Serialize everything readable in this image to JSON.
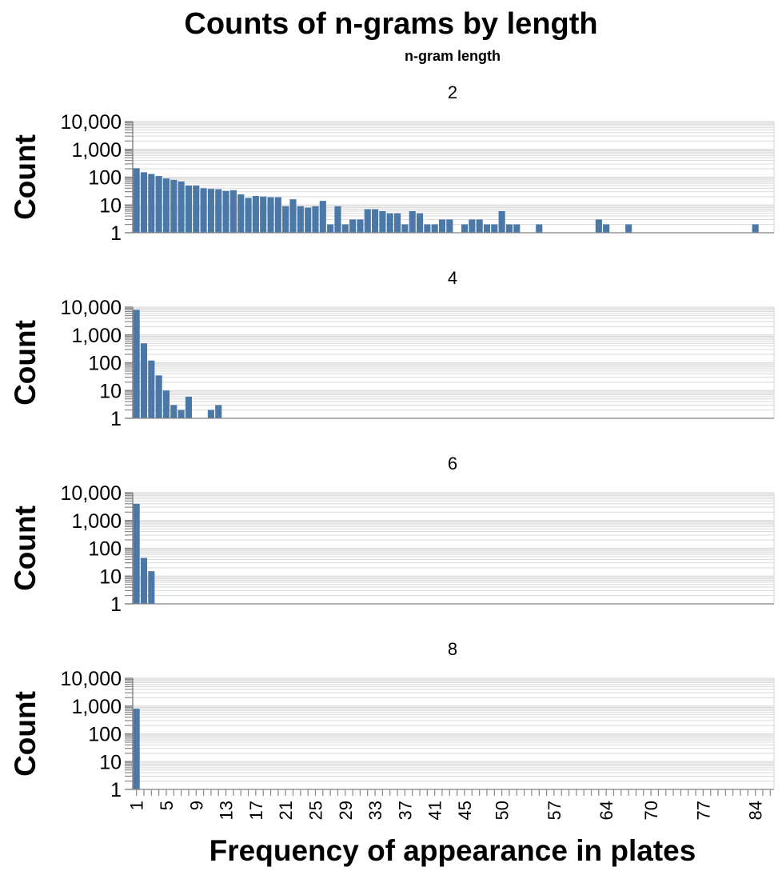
{
  "chart_data": {
    "type": "bar",
    "title": "Counts of n-grams by length",
    "facet_header": "n-gram length",
    "xlabel": "Frequency of appearance in plates",
    "ylabel": "Count",
    "y_scale": "log",
    "y_ticks": [
      "1",
      "10",
      "100",
      "1,000",
      "10,000"
    ],
    "x_tick_labels": [
      "1",
      "5",
      "9",
      "13",
      "17",
      "21",
      "25",
      "29",
      "33",
      "37",
      "41",
      "45",
      "50",
      "57",
      "64",
      "70",
      "77",
      "84"
    ],
    "grid": true,
    "colors": {
      "bar": "#4c78a8",
      "grid": "#dddddd",
      "tick": "#888888"
    },
    "facets": [
      {
        "name": "2",
        "points": [
          [
            1,
            210
          ],
          [
            2,
            150
          ],
          [
            3,
            130
          ],
          [
            4,
            110
          ],
          [
            5,
            90
          ],
          [
            6,
            80
          ],
          [
            7,
            70
          ],
          [
            8,
            50
          ],
          [
            9,
            50
          ],
          [
            10,
            40
          ],
          [
            11,
            38
          ],
          [
            12,
            37
          ],
          [
            13,
            32
          ],
          [
            14,
            34
          ],
          [
            15,
            24
          ],
          [
            16,
            18
          ],
          [
            17,
            21
          ],
          [
            18,
            20
          ],
          [
            19,
            19
          ],
          [
            20,
            19
          ],
          [
            21,
            9
          ],
          [
            22,
            16
          ],
          [
            23,
            9
          ],
          [
            24,
            8
          ],
          [
            25,
            9
          ],
          [
            26,
            14
          ],
          [
            27,
            2
          ],
          [
            28,
            9
          ],
          [
            29,
            2
          ],
          [
            30,
            3
          ],
          [
            31,
            3
          ],
          [
            32,
            7
          ],
          [
            33,
            7
          ],
          [
            34,
            6
          ],
          [
            35,
            5
          ],
          [
            36,
            5
          ],
          [
            37,
            2
          ],
          [
            38,
            6
          ],
          [
            39,
            5
          ],
          [
            40,
            2
          ],
          [
            41,
            2
          ],
          [
            42,
            3
          ],
          [
            43,
            3
          ],
          [
            45,
            2
          ],
          [
            46,
            3
          ],
          [
            47,
            3
          ],
          [
            48,
            2
          ],
          [
            49,
            2
          ],
          [
            50,
            6
          ],
          [
            51,
            2
          ],
          [
            52,
            2
          ],
          [
            55,
            2
          ],
          [
            63,
            3
          ],
          [
            64,
            2
          ],
          [
            67,
            2
          ],
          [
            84,
            2
          ]
        ]
      },
      {
        "name": "4",
        "points": [
          [
            1,
            8000
          ],
          [
            2,
            500
          ],
          [
            3,
            120
          ],
          [
            4,
            35
          ],
          [
            5,
            10
          ],
          [
            6,
            3
          ],
          [
            7,
            2
          ],
          [
            8,
            6
          ],
          [
            11,
            2
          ],
          [
            12,
            3
          ]
        ]
      },
      {
        "name": "6",
        "points": [
          [
            1,
            4000
          ],
          [
            2,
            45
          ],
          [
            3,
            15
          ]
        ]
      },
      {
        "name": "8",
        "points": [
          [
            1,
            800
          ]
        ]
      }
    ]
  }
}
